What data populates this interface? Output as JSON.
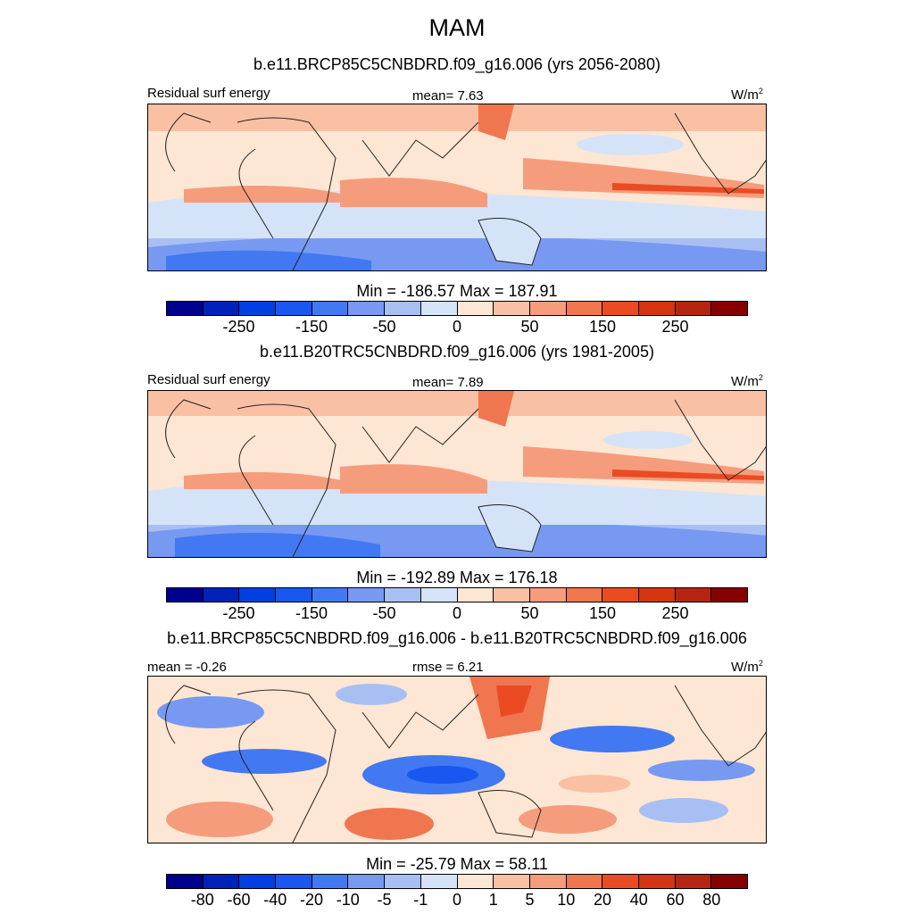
{
  "figure": {
    "title": "MAM"
  },
  "colors": {
    "palette": [
      "#00008e",
      "#0022b8",
      "#003fe0",
      "#1a56f0",
      "#4278f2",
      "#7799f2",
      "#a8bff4",
      "#d5e3f8",
      "#fde6d3",
      "#f9c0a4",
      "#f59c7c",
      "#f07650",
      "#ea4b22",
      "#d53510",
      "#b52511",
      "#860000"
    ],
    "land": "#fde6d3",
    "coast": "#222222"
  },
  "panels": [
    {
      "case_title": "b.e11.BRCP85C5CNBDRD.f09_g16.006 (yrs 2056-2080)",
      "left_label": "Residual surf energy",
      "center_label": "mean=   7.63",
      "units": "W/m",
      "units_sup": "2",
      "min_max": "Min = -186.57 Max = 187.91",
      "tick_labels": [
        "-250",
        "-150",
        "-50",
        "0",
        "50",
        "150",
        "250"
      ]
    },
    {
      "case_title": "b.e11.B20TRC5CNBDRD.f09_g16.006 (yrs 1981-2005)",
      "left_label": "Residual surf energy",
      "center_label": "mean=   7.89",
      "units": "W/m",
      "units_sup": "2",
      "min_max": "Min = -192.89 Max = 176.18",
      "tick_labels": [
        "-250",
        "-150",
        "-50",
        "0",
        "50",
        "150",
        "250"
      ]
    },
    {
      "case_title": "b.e11.BRCP85C5CNBDRD.f09_g16.006 - b.e11.B20TRC5CNBDRD.f09_g16.006",
      "left_label": "mean =  -0.26",
      "center_label": "rmse =   6.21",
      "units": "W/m",
      "units_sup": "2",
      "min_max": "Min = -25.79 Max =  58.11",
      "tick_labels": [
        "-80",
        "-60",
        "-40",
        "-20",
        "-10",
        "-5",
        "-1",
        "0",
        "1",
        "5",
        "10",
        "20",
        "40",
        "60",
        "80"
      ]
    }
  ]
}
